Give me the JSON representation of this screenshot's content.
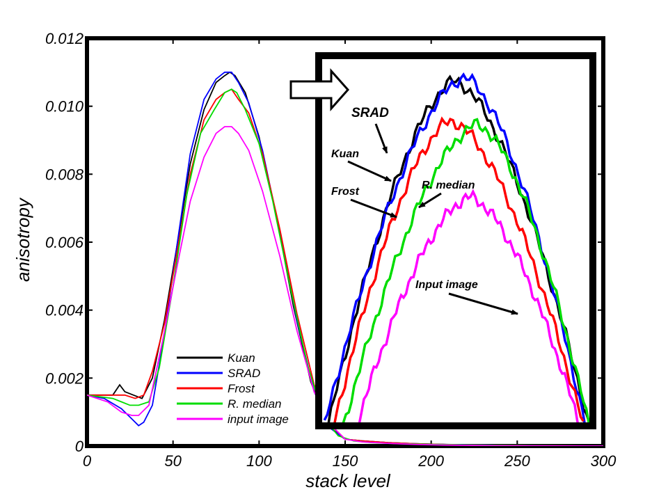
{
  "chart_data": {
    "type": "line",
    "xlabel": "stack level",
    "ylabel": "anisotropy",
    "xlim": [
      0,
      300
    ],
    "ylim": [
      0,
      0.012
    ],
    "x_ticks": [
      "0",
      "50",
      "100",
      "150",
      "200",
      "250",
      "300"
    ],
    "y_ticks": [
      "0",
      "0.002",
      "0.004",
      "0.006",
      "0.008",
      "0.010",
      "0.012"
    ],
    "legend_position": "lower-left",
    "series": [
      {
        "name": "Kuan",
        "color": "#000000",
        "x": [
          0,
          15,
          19,
          22,
          27,
          32,
          38,
          45,
          52,
          60,
          68,
          75,
          80,
          83,
          86,
          92,
          100,
          110,
          120,
          130,
          140,
          150,
          160,
          175,
          190,
          205,
          210,
          220,
          235,
          250,
          265,
          280,
          300
        ],
        "y": [
          0.0015,
          0.0015,
          0.0018,
          0.0016,
          0.0015,
          0.0014,
          0.002,
          0.0037,
          0.0058,
          0.0083,
          0.0099,
          0.0107,
          0.0109,
          0.011,
          0.0109,
          0.0104,
          0.0091,
          0.0068,
          0.0041,
          0.0019,
          0.0006,
          0.0002,
          0.00015,
          0.0001,
          7e-05,
          5e-05,
          4e-05,
          3e-05,
          2e-05,
          1e-05,
          1e-05,
          0,
          0
        ]
      },
      {
        "name": "SRAD",
        "color": "#0000ff",
        "x": [
          0,
          10,
          20,
          26,
          30,
          33,
          38,
          45,
          52,
          60,
          68,
          75,
          80,
          84,
          88,
          94,
          102,
          112,
          122,
          132,
          142,
          150,
          160,
          175,
          190,
          205,
          215,
          230,
          250,
          280,
          300
        ],
        "y": [
          0.0015,
          0.0014,
          0.0011,
          0.0008,
          0.0006,
          0.0007,
          0.0012,
          0.0033,
          0.0058,
          0.0086,
          0.0102,
          0.0108,
          0.011,
          0.011,
          0.0107,
          0.0101,
          0.0087,
          0.0063,
          0.0037,
          0.0016,
          0.0005,
          0.0002,
          0.00015,
          0.0001,
          7e-05,
          5e-05,
          4e-05,
          3e-05,
          1e-05,
          0,
          0
        ]
      },
      {
        "name": "Frost",
        "color": "#ff0000",
        "x": [
          0,
          15,
          22,
          28,
          33,
          38,
          45,
          52,
          60,
          68,
          75,
          80,
          84,
          88,
          94,
          102,
          112,
          122,
          132,
          142,
          150,
          160,
          175,
          190,
          205,
          220,
          240,
          260,
          300
        ],
        "y": [
          0.0015,
          0.0015,
          0.0015,
          0.0014,
          0.0015,
          0.0022,
          0.0036,
          0.0056,
          0.008,
          0.0096,
          0.0102,
          0.0104,
          0.0105,
          0.0102,
          0.0098,
          0.0086,
          0.0064,
          0.0039,
          0.0018,
          0.0006,
          0.0002,
          0.00015,
          0.0001,
          7e-05,
          5e-05,
          3e-05,
          2e-05,
          1e-05,
          0
        ]
      },
      {
        "name": "R. median",
        "color": "#00dd00",
        "x": [
          0,
          15,
          20,
          25,
          30,
          36,
          42,
          50,
          58,
          66,
          74,
          80,
          84,
          87,
          92,
          100,
          108,
          118,
          128,
          138,
          146,
          155,
          165,
          180,
          200,
          220,
          240,
          260,
          300
        ],
        "y": [
          0.0015,
          0.0014,
          0.0013,
          0.0012,
          0.0012,
          0.0013,
          0.0023,
          0.0047,
          0.0074,
          0.0092,
          0.0099,
          0.0104,
          0.0105,
          0.0104,
          0.0099,
          0.0089,
          0.0072,
          0.0047,
          0.0024,
          0.0008,
          0.0003,
          0.00015,
          0.0001,
          7e-05,
          5e-05,
          3e-05,
          2e-05,
          1e-05,
          0
        ]
      },
      {
        "name": "input image",
        "color": "#ff00ff",
        "x": [
          0,
          12,
          20,
          26,
          30,
          36,
          44,
          52,
          60,
          68,
          75,
          80,
          84,
          88,
          94,
          102,
          112,
          122,
          132,
          142,
          150,
          160,
          175,
          190,
          205,
          220,
          240,
          300
        ],
        "y": [
          0.0015,
          0.0013,
          0.001,
          0.0009,
          0.0009,
          0.0012,
          0.0031,
          0.0052,
          0.0072,
          0.0085,
          0.0092,
          0.0094,
          0.0094,
          0.0092,
          0.0087,
          0.0075,
          0.0056,
          0.0034,
          0.0016,
          0.0006,
          0.0002,
          0.00012,
          8e-05,
          5e-05,
          3e-05,
          2e-05,
          1e-05,
          0
        ]
      }
    ],
    "inset": {
      "description": "zoomed view of the peak region",
      "labels": {
        "srad": "SRAD",
        "kuan": "Kuan",
        "frost": "Frost",
        "rmedian": "R. median",
        "input": "Input image"
      }
    }
  }
}
